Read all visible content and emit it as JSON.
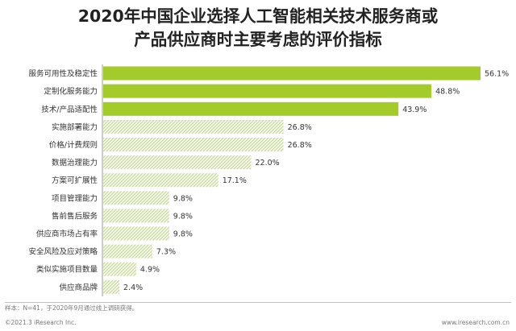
{
  "title_lines": [
    "2020年中国企业选择人工智能相关技术服务商或",
    "产品供应商时主要考虑的评价指标"
  ],
  "colors": {
    "highlight": "#a3cc2a",
    "hatch_line": "#b9d37a",
    "hatch_bg": "#f4f8e6"
  },
  "chart_data": {
    "type": "bar",
    "orientation": "horizontal",
    "title": "2020年中国企业选择人工智能相关技术服务商或产品供应商时主要考虑的评价指标",
    "categories": [
      "服务可用性及稳定性",
      "定制化服务能力",
      "技术/产品适配性",
      "实施部署能力",
      "价格/计费规则",
      "数据治理能力",
      "方案可扩展性",
      "项目管理能力",
      "售前售后服务",
      "供应商市场占有率",
      "安全风险及应对策略",
      "类似实施项目数量",
      "供应商品牌"
    ],
    "values": [
      56.1,
      48.8,
      43.9,
      26.8,
      26.8,
      22.0,
      17.1,
      9.8,
      9.8,
      9.8,
      7.3,
      4.9,
      2.4
    ],
    "value_labels": [
      "56.1%",
      "48.8%",
      "43.9%",
      "26.8%",
      "26.8%",
      "22.0%",
      "17.1%",
      "9.8%",
      "9.8%",
      "9.8%",
      "7.3%",
      "4.9%",
      "2.4%"
    ],
    "highlighted_count": 3,
    "unit": "%",
    "xlim": [
      0,
      60
    ],
    "grid": false,
    "legend": "none"
  },
  "footer": {
    "note": "样本：N=41，于2020年9月通过线上调研获得。",
    "copyright": "©2021.3 iResearch Inc.",
    "site": "www.iresearch.com.cn"
  }
}
